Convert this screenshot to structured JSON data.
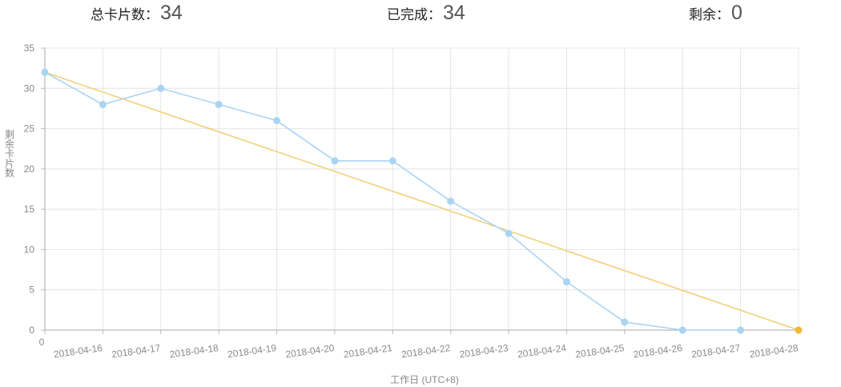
{
  "summary": {
    "total_label": "总卡片数：",
    "total_value": "34",
    "done_label": "已完成：",
    "done_value": "34",
    "remaining_label": "剩余：",
    "remaining_value": "0"
  },
  "chart_data": {
    "type": "line",
    "ylabel": "剩余卡片数",
    "xlabel": "工作日 (UTC+8)",
    "ylim": [
      0,
      35
    ],
    "yticks": [
      0,
      5,
      10,
      15,
      20,
      25,
      30,
      35
    ],
    "x_origin_label": "0",
    "categories": [
      "2018-04-16",
      "2018-04-17",
      "2018-04-18",
      "2018-04-19",
      "2018-04-20",
      "2018-04-21",
      "2018-04-22",
      "2018-04-23",
      "2018-04-24",
      "2018-04-25",
      "2018-04-26",
      "2018-04-27",
      "2018-04-28"
    ],
    "grid": true,
    "series": [
      {
        "key": "actual",
        "color": "#a9d4f2",
        "points": [
          {
            "x": "0",
            "y": 32
          },
          {
            "x": "2018-04-16",
            "y": 28
          },
          {
            "x": "2018-04-17",
            "y": 30
          },
          {
            "x": "2018-04-18",
            "y": 28
          },
          {
            "x": "2018-04-19",
            "y": 26
          },
          {
            "x": "2018-04-20",
            "y": 21
          },
          {
            "x": "2018-04-21",
            "y": 21
          },
          {
            "x": "2018-04-22",
            "y": 16
          },
          {
            "x": "2018-04-23",
            "y": 12
          },
          {
            "x": "2018-04-24",
            "y": 6
          },
          {
            "x": "2018-04-25",
            "y": 1
          },
          {
            "x": "2018-04-26",
            "y": 0
          },
          {
            "x": "2018-04-27",
            "y": 0
          }
        ]
      },
      {
        "key": "ideal",
        "color": "#f3cf7a",
        "end_point_color": "#f0b83a",
        "points": [
          {
            "x": "0",
            "y": 32
          },
          {
            "x": "2018-04-28",
            "y": 0
          }
        ]
      }
    ]
  }
}
